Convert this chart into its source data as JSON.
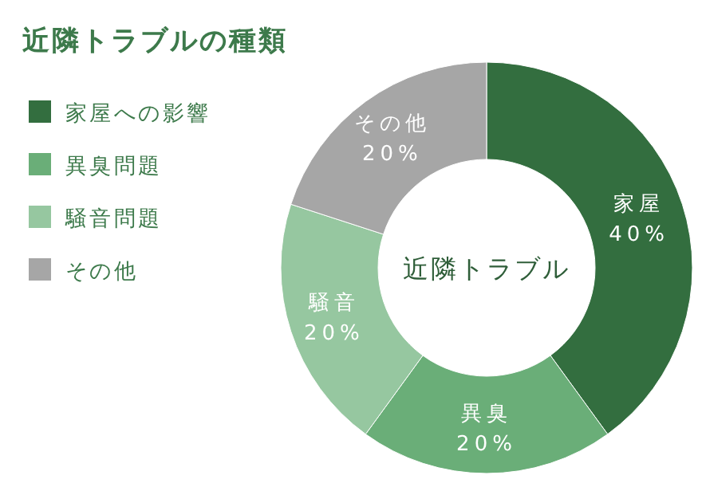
{
  "chart_data": {
    "type": "donut",
    "title": "近隣トラブルの種類",
    "categories": [
      "家屋への影響",
      "異臭問題",
      "騒音問題",
      "その他"
    ],
    "values": [
      40,
      20,
      20,
      20
    ],
    "colors": [
      "#336e3f",
      "#6aae78",
      "#96c7a0",
      "#a6a6a6"
    ],
    "value_labels": [
      "家屋\n40%",
      "異臭\n20%",
      "騒音\n20%",
      "その他\n20%"
    ],
    "annotations": [
      "近隣トラブル"
    ],
    "legend": "left"
  }
}
